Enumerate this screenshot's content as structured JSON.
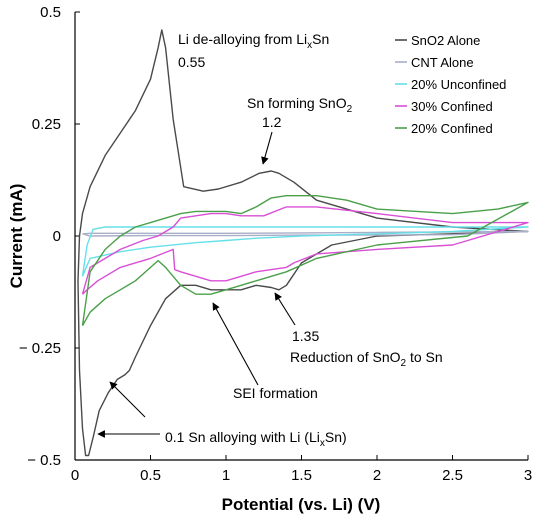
{
  "chart_data": {
    "type": "line",
    "title": "",
    "xlabel": "Potential (vs. Li) (V)",
    "ylabel": "Current (mA)",
    "xlim": [
      0,
      3
    ],
    "ylim": [
      -0.5,
      0.5
    ],
    "x_ticks": [
      "0",
      "0.5",
      "1",
      "1.5",
      "2",
      "2.5",
      "3"
    ],
    "y_ticks": [
      "0.5",
      "0.25",
      "0",
      "− 0.25",
      "− 0.5"
    ],
    "grid": false,
    "legend_position": "top-right",
    "colors": {
      "SnO2 Alone": "#4a4a4a",
      "CNT Alone": "#a9aec9",
      "20% Unconfined": "#66e0e8",
      "30% Confined": "#d94fd6",
      "20% Confined": "#4aa04a"
    },
    "series": [
      {
        "name": "SnO2 Alone",
        "x": [
          3.0,
          2.5,
          2.0,
          1.6,
          1.45,
          1.35,
          1.3,
          1.22,
          1.1,
          0.95,
          0.85,
          0.72,
          0.65,
          0.6,
          0.575,
          0.55,
          0.5,
          0.4,
          0.3,
          0.2,
          0.1,
          0.05,
          0.03,
          0.02,
          0.03,
          0.05,
          0.07,
          0.09,
          0.12,
          0.16,
          0.22,
          0.28,
          0.33,
          0.36,
          0.4,
          0.5,
          0.6,
          0.7,
          0.8,
          0.9,
          1.0,
          1.1,
          1.2,
          1.3,
          1.35,
          1.4,
          1.5,
          1.7,
          2.0,
          2.5,
          3.0
        ],
        "y": [
          0.01,
          0.02,
          0.04,
          0.08,
          0.12,
          0.14,
          0.145,
          0.14,
          0.12,
          0.105,
          0.1,
          0.11,
          0.26,
          0.42,
          0.46,
          0.42,
          0.35,
          0.28,
          0.23,
          0.18,
          0.11,
          0.05,
          0.0,
          -0.1,
          -0.3,
          -0.43,
          -0.49,
          -0.49,
          -0.45,
          -0.39,
          -0.35,
          -0.32,
          -0.31,
          -0.3,
          -0.27,
          -0.2,
          -0.14,
          -0.11,
          -0.11,
          -0.12,
          -0.12,
          -0.12,
          -0.11,
          -0.115,
          -0.12,
          -0.11,
          -0.06,
          -0.02,
          0.0,
          0.005,
          0.01
        ]
      },
      {
        "name": "CNT Alone",
        "x": [
          0.05,
          0.1,
          0.5,
          1.0,
          1.5,
          2.0,
          2.5,
          3.0,
          2.5,
          2.0,
          1.5,
          1.0,
          0.5,
          0.1,
          0.05
        ],
        "y": [
          0.005,
          0.006,
          0.006,
          0.006,
          0.007,
          0.008,
          0.009,
          0.01,
          0.003,
          0.002,
          0.002,
          0.001,
          0.001,
          0.0,
          0.005
        ]
      },
      {
        "name": "20% Unconfined",
        "x": [
          0.05,
          0.08,
          0.12,
          0.2,
          0.5,
          1.0,
          1.5,
          2.0,
          2.5,
          3.0,
          2.5,
          2.0,
          1.5,
          1.2,
          1.0,
          0.8,
          0.5,
          0.3,
          0.1,
          0.05
        ],
        "y": [
          -0.09,
          -0.02,
          0.015,
          0.02,
          0.02,
          0.02,
          0.02,
          0.02,
          0.02,
          0.02,
          0.01,
          0.005,
          0.0,
          -0.005,
          -0.01,
          -0.015,
          -0.025,
          -0.035,
          -0.05,
          -0.09
        ]
      },
      {
        "name": "30% Confined",
        "x": [
          0.05,
          0.1,
          0.2,
          0.3,
          0.45,
          0.55,
          0.65,
          0.7,
          0.8,
          0.9,
          1.0,
          1.1,
          1.25,
          1.4,
          1.6,
          2.0,
          2.5,
          3.0,
          2.5,
          2.0,
          1.6,
          1.45,
          1.4,
          1.3,
          1.2,
          1.1,
          1.0,
          0.9,
          0.8,
          0.7,
          0.66,
          0.65,
          0.5,
          0.3,
          0.15,
          0.08,
          0.05
        ],
        "y": [
          -0.13,
          -0.07,
          -0.05,
          -0.03,
          -0.01,
          0.0,
          0.02,
          0.04,
          0.045,
          0.05,
          0.05,
          0.045,
          0.045,
          0.065,
          0.065,
          0.05,
          0.03,
          0.03,
          -0.02,
          -0.03,
          -0.04,
          -0.06,
          -0.07,
          -0.075,
          -0.08,
          -0.09,
          -0.1,
          -0.1,
          -0.09,
          -0.08,
          -0.075,
          -0.03,
          -0.05,
          -0.07,
          -0.1,
          -0.12,
          -0.13
        ]
      },
      {
        "name": "20% Confined",
        "x": [
          0.05,
          0.1,
          0.2,
          0.3,
          0.4,
          0.5,
          0.6,
          0.7,
          0.8,
          1.0,
          1.1,
          1.2,
          1.3,
          1.4,
          1.6,
          1.8,
          2.0,
          2.5,
          2.8,
          3.0,
          2.6,
          2.0,
          1.6,
          1.4,
          1.3,
          1.2,
          1.1,
          1.0,
          0.9,
          0.8,
          0.7,
          0.6,
          0.55,
          0.5,
          0.4,
          0.3,
          0.2,
          0.1,
          0.05
        ],
        "y": [
          -0.2,
          -0.08,
          -0.03,
          0.0,
          0.02,
          0.03,
          0.04,
          0.05,
          0.055,
          0.055,
          0.05,
          0.065,
          0.085,
          0.09,
          0.09,
          0.08,
          0.06,
          0.05,
          0.06,
          0.075,
          0.0,
          -0.02,
          -0.05,
          -0.08,
          -0.09,
          -0.1,
          -0.11,
          -0.12,
          -0.13,
          -0.13,
          -0.11,
          -0.07,
          -0.055,
          -0.07,
          -0.1,
          -0.12,
          -0.14,
          -0.17,
          -0.2
        ]
      }
    ],
    "annotations": [
      {
        "main": "Li de-alloying from Li",
        "sub": "x",
        "rest": "Sn"
      },
      {
        "main": "0.55"
      },
      {
        "main": "Sn forming SnO",
        "sub": "2",
        "rest": ""
      },
      {
        "main": "1.2"
      },
      {
        "main": "1.35"
      },
      {
        "main": "Reduction of SnO",
        "sub": "2",
        "rest": " to Sn"
      },
      {
        "main": "SEI formation"
      },
      {
        "main": "0.1 Sn alloying with Li (Li",
        "sub": "x",
        "rest": "Sn)"
      }
    ]
  }
}
